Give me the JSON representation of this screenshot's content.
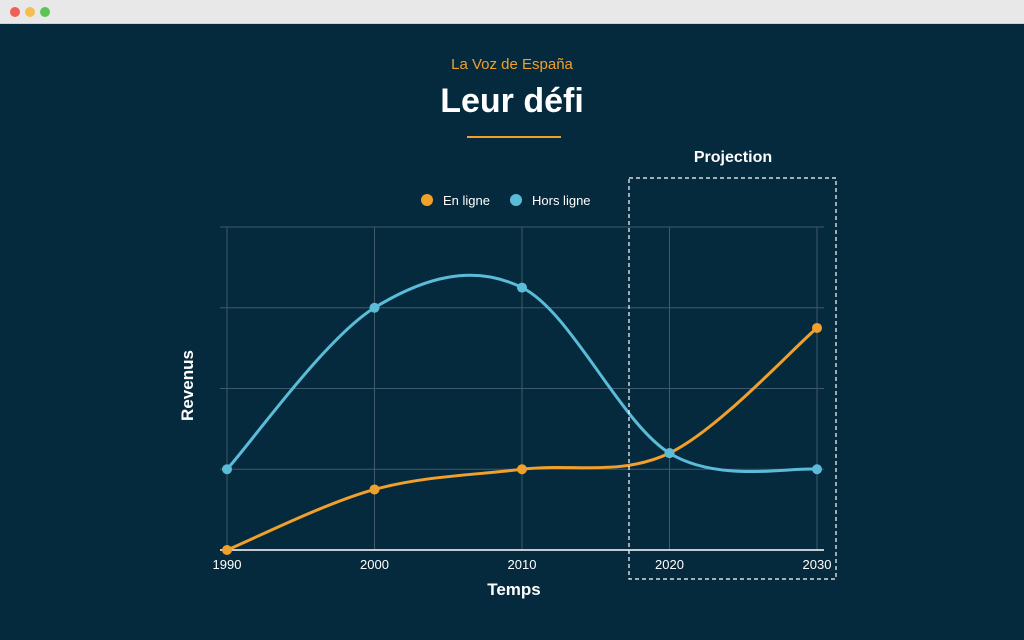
{
  "window": {
    "controls": [
      "close",
      "minimize",
      "maximize"
    ]
  },
  "header": {
    "brand": "La Voz de España",
    "title": "Leur défi"
  },
  "colors": {
    "background": "#062a3d",
    "accent": "#f0a02b",
    "online": "#f0a02b",
    "offline": "#5bbcd9",
    "grid": "#3f5a6b"
  },
  "chart_data": {
    "type": "line",
    "title": "Leur défi",
    "xlabel": "Temps",
    "ylabel": "Revenus",
    "categories": [
      "1990",
      "2000",
      "2010",
      "2020",
      "2030"
    ],
    "ylim": [
      0,
      4
    ],
    "grid": true,
    "legend_position": "top-center",
    "series": [
      {
        "name": "En ligne",
        "color": "#f0a02b",
        "values": [
          0,
          0.75,
          1.0,
          1.2,
          2.75
        ]
      },
      {
        "name": "Hors ligne",
        "color": "#5bbcd9",
        "values": [
          1.0,
          3.0,
          3.25,
          1.2,
          1.0
        ]
      }
    ],
    "annotations": [
      {
        "label": "Projection",
        "from": "2020",
        "to": "2030"
      }
    ]
  }
}
